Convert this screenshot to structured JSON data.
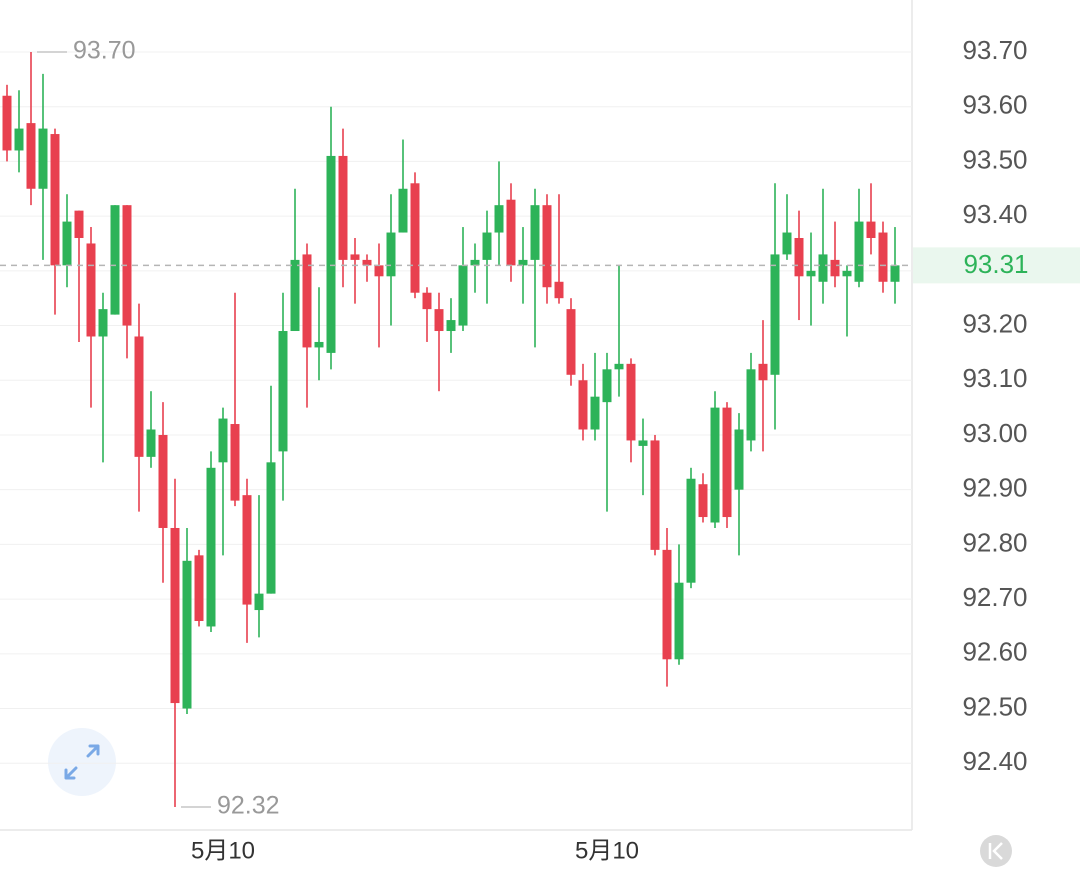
{
  "chart_data": {
    "type": "candlestick",
    "categories": [
      null,
      null,
      null,
      null,
      null,
      null,
      null,
      null,
      null,
      null,
      null,
      null,
      null,
      null,
      null,
      null,
      null,
      null,
      "5月10",
      null,
      null,
      null,
      null,
      null,
      null,
      null,
      null,
      null,
      null,
      null,
      null,
      null,
      null,
      null,
      null,
      null,
      null,
      null,
      null,
      null,
      null,
      null,
      null,
      null,
      null,
      null,
      null,
      null,
      null,
      null,
      "5月10",
      null,
      null,
      null,
      null,
      null,
      null,
      null,
      null,
      null,
      null,
      null,
      null,
      null,
      null,
      null,
      null,
      null,
      null,
      null,
      null,
      null,
      null,
      null,
      null
    ],
    "open": [
      93.62,
      93.52,
      93.57,
      93.45,
      93.55,
      93.31,
      93.41,
      93.35,
      93.18,
      93.22,
      93.42,
      93.18,
      92.96,
      93.0,
      92.83,
      92.5,
      92.78,
      92.65,
      92.95,
      93.02,
      92.89,
      92.68,
      92.71,
      92.97,
      93.19,
      93.33,
      93.16,
      93.15,
      93.51,
      93.33,
      93.32,
      93.31,
      93.29,
      93.37,
      93.46,
      93.26,
      93.23,
      93.19,
      93.2,
      93.31,
      93.32,
      93.37,
      93.43,
      93.31,
      93.32,
      93.42,
      93.28,
      93.23,
      93.1,
      93.01,
      93.06,
      93.12,
      93.13,
      92.98,
      92.99,
      92.79,
      92.59,
      92.73,
      92.91,
      92.84,
      93.05,
      92.9,
      92.99,
      93.13,
      93.11,
      93.33,
      93.36,
      93.29,
      93.28,
      93.32,
      93.29,
      93.28,
      93.39,
      93.37,
      93.28
    ],
    "high": [
      93.64,
      93.63,
      93.7,
      93.66,
      93.56,
      93.44,
      93.41,
      93.38,
      93.26,
      93.42,
      93.42,
      93.24,
      93.08,
      93.06,
      92.92,
      92.83,
      92.79,
      92.97,
      93.05,
      93.26,
      92.92,
      92.89,
      93.09,
      93.26,
      93.45,
      93.35,
      93.27,
      93.6,
      93.56,
      93.36,
      93.33,
      93.35,
      93.44,
      93.54,
      93.48,
      93.27,
      93.26,
      93.25,
      93.38,
      93.35,
      93.41,
      93.5,
      93.46,
      93.38,
      93.45,
      93.44,
      93.44,
      93.25,
      93.13,
      93.15,
      93.15,
      93.31,
      93.14,
      93.03,
      93.0,
      92.83,
      92.8,
      92.94,
      92.93,
      93.08,
      93.06,
      93.04,
      93.15,
      93.21,
      93.46,
      93.44,
      93.41,
      93.37,
      93.45,
      93.39,
      93.31,
      93.45,
      93.46,
      93.39,
      93.38
    ],
    "low": [
      93.5,
      93.48,
      93.42,
      93.32,
      93.22,
      93.27,
      93.17,
      93.05,
      92.95,
      93.22,
      93.14,
      92.86,
      92.94,
      92.73,
      92.32,
      92.49,
      92.65,
      92.64,
      92.78,
      92.87,
      92.62,
      92.63,
      92.71,
      92.88,
      93.19,
      93.05,
      93.1,
      93.12,
      93.27,
      93.24,
      93.28,
      93.16,
      93.2,
      93.37,
      93.25,
      93.17,
      93.08,
      93.15,
      93.19,
      93.26,
      93.24,
      93.31,
      93.28,
      93.24,
      93.16,
      93.24,
      93.24,
      93.09,
      92.99,
      92.99,
      92.86,
      93.07,
      92.95,
      92.89,
      92.78,
      92.54,
      92.58,
      92.72,
      92.84,
      92.83,
      92.83,
      92.78,
      92.97,
      92.97,
      93.01,
      93.32,
      93.21,
      93.2,
      93.24,
      93.27,
      93.18,
      93.27,
      93.33,
      93.26,
      93.24
    ],
    "close": [
      93.52,
      93.56,
      93.45,
      93.56,
      93.31,
      93.39,
      93.36,
      93.18,
      93.23,
      93.42,
      93.2,
      92.96,
      93.01,
      92.83,
      92.51,
      92.77,
      92.66,
      92.94,
      93.03,
      92.88,
      92.69,
      92.71,
      92.95,
      93.19,
      93.32,
      93.16,
      93.17,
      93.51,
      93.32,
      93.32,
      93.31,
      93.29,
      93.37,
      93.45,
      93.26,
      93.23,
      93.19,
      93.21,
      93.31,
      93.32,
      93.37,
      93.42,
      93.31,
      93.32,
      93.42,
      93.27,
      93.25,
      93.11,
      93.01,
      93.07,
      93.12,
      93.13,
      92.99,
      92.99,
      92.79,
      92.59,
      92.73,
      92.92,
      92.85,
      93.05,
      92.85,
      93.01,
      93.12,
      93.1,
      93.33,
      93.37,
      93.29,
      93.3,
      93.33,
      93.29,
      93.3,
      93.39,
      93.36,
      93.28,
      93.31
    ],
    "up_color": "#2db359",
    "down_color": "#e8404f",
    "ylim": [
      92.278,
      93.795
    ],
    "yticks": [
      {
        "value": 92.4,
        "label": "92.40"
      },
      {
        "value": 92.5,
        "label": "92.50"
      },
      {
        "value": 92.6,
        "label": "92.60"
      },
      {
        "value": 92.7,
        "label": "92.70"
      },
      {
        "value": 92.8,
        "label": "92.80"
      },
      {
        "value": 92.9,
        "label": "92.90"
      },
      {
        "value": 93.0,
        "label": "93.00"
      },
      {
        "value": 93.1,
        "label": "93.10"
      },
      {
        "value": 93.2,
        "label": "93.20"
      },
      {
        "value": 93.3,
        "label": "93.30"
      },
      {
        "value": 93.4,
        "label": "93.40"
      },
      {
        "value": 93.5,
        "label": "93.50"
      },
      {
        "value": 93.6,
        "label": "93.60"
      },
      {
        "value": 93.7,
        "label": "93.70"
      }
    ],
    "grid": true,
    "last_price": 93.31,
    "high_label": {
      "value": 93.7,
      "label": "93.70"
    },
    "low_label": 92.32
  }
}
